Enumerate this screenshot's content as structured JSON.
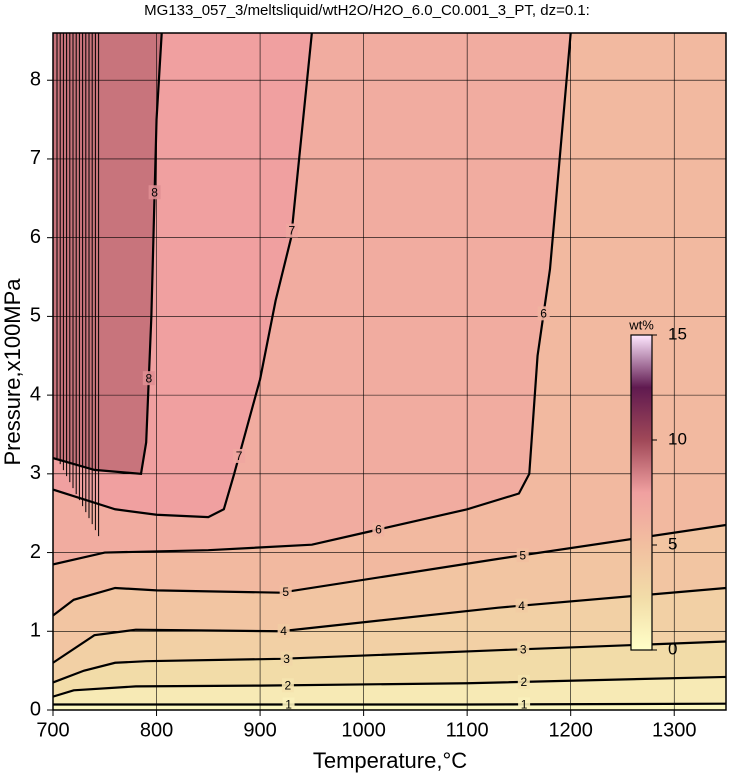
{
  "chart_data": {
    "type": "contour",
    "title": "MG133_057_3/meltsliquid/wtH2O/H2O_6.0_C0.001_3_PT, dz=0.1:",
    "xlabel": "Temperature,°C",
    "ylabel": "Pressure,x100MPa",
    "xlim": [
      700,
      1350
    ],
    "ylim": [
      0,
      8.6
    ],
    "xticks": [
      700,
      800,
      900,
      1000,
      1100,
      1200,
      1300
    ],
    "yticks": [
      0,
      1,
      2,
      3,
      4,
      5,
      6,
      7,
      8
    ],
    "grid": true,
    "colormap": [
      "#ffffc8",
      "#f2dca8",
      "#f2bfa0",
      "#f0a0a0",
      "#a04858",
      "#601a50",
      "#ffe8ff"
    ],
    "colorbar": {
      "label": "wt%",
      "lim": [
        0,
        15
      ],
      "ticks": [
        0,
        5,
        10,
        15
      ]
    },
    "contours": [
      {
        "level": 1,
        "x": [
          700,
          900,
          1100,
          1350
        ],
        "y": [
          0.07,
          0.07,
          0.07,
          0.08
        ]
      },
      {
        "level": 2,
        "x": [
          700,
          720,
          780,
          900,
          1100,
          1350
        ],
        "y": [
          0.17,
          0.25,
          0.3,
          0.31,
          0.34,
          0.42
        ]
      },
      {
        "level": 3,
        "x": [
          700,
          730,
          760,
          790,
          920,
          1130,
          1350
        ],
        "y": [
          0.35,
          0.5,
          0.6,
          0.62,
          0.65,
          0.76,
          0.87
        ]
      },
      {
        "level": 4,
        "x": [
          700,
          740,
          780,
          920,
          1130,
          1350
        ],
        "y": [
          0.6,
          0.95,
          1.02,
          1.0,
          1.3,
          1.55
        ]
      },
      {
        "level": 5,
        "x": [
          700,
          720,
          760,
          800,
          920,
          1130,
          1350
        ],
        "y": [
          1.2,
          1.4,
          1.55,
          1.52,
          1.49,
          1.92,
          2.35
        ]
      },
      {
        "level": 6,
        "x": [
          700,
          750,
          850,
          950,
          1000,
          1100,
          1150,
          1160,
          1168,
          1180,
          1200
        ],
        "y": [
          1.85,
          2.0,
          2.03,
          2.1,
          2.25,
          2.55,
          2.75,
          3.0,
          4.5,
          5.6,
          8.6
        ]
      },
      {
        "level": 7,
        "x": [
          700,
          760,
          800,
          850,
          865,
          875,
          900,
          915,
          930,
          950
        ],
        "y": [
          2.8,
          2.55,
          2.48,
          2.45,
          2.55,
          3.0,
          4.2,
          5.2,
          6.0,
          8.6
        ]
      },
      {
        "level": 8,
        "x": [
          700,
          740,
          785,
          790,
          795,
          800,
          805
        ],
        "y": [
          3.2,
          3.05,
          3.0,
          3.4,
          5.0,
          7.5,
          8.6
        ]
      }
    ]
  }
}
